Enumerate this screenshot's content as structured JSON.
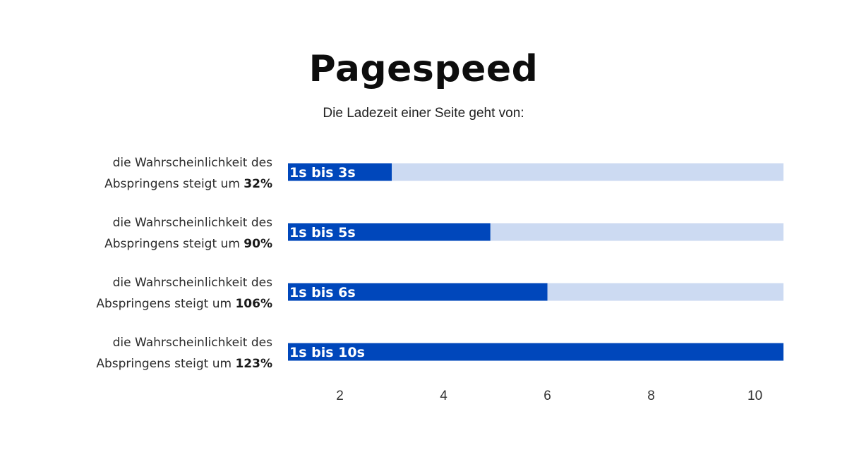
{
  "title": "Pagespeed",
  "subtitle": "Die Ladezeit einer Seite geht von:",
  "colors": {
    "bar": "#0047bb",
    "track": "#ccdaf2",
    "background": "#ffffff"
  },
  "chart_data": {
    "type": "bar",
    "orientation": "horizontal",
    "xlim": [
      1,
      10.55
    ],
    "x_ticks": [
      2,
      4,
      6,
      8,
      10
    ],
    "grid": false,
    "legend": "none",
    "categories": [
      "1s bis 3s",
      "1s bis 5s",
      "1s bis 6s",
      "1s bis 10s"
    ],
    "values": [
      3,
      4.9,
      6,
      10.55
    ],
    "row_labels": [
      {
        "line1": "die Wahrscheinlichkeit des",
        "line2": "Abspringens steigt um",
        "pct": "32%"
      },
      {
        "line1": "die Wahrscheinlichkeit des",
        "line2": "Abspringens steigt um",
        "pct": "90%"
      },
      {
        "line1": "die Wahrscheinlichkeit des",
        "line2": "Abspringens steigt um",
        "pct": "106%"
      },
      {
        "line1": "die Wahrscheinlichkeit des",
        "line2": "Abspringens steigt um",
        "pct": "123%"
      }
    ]
  }
}
